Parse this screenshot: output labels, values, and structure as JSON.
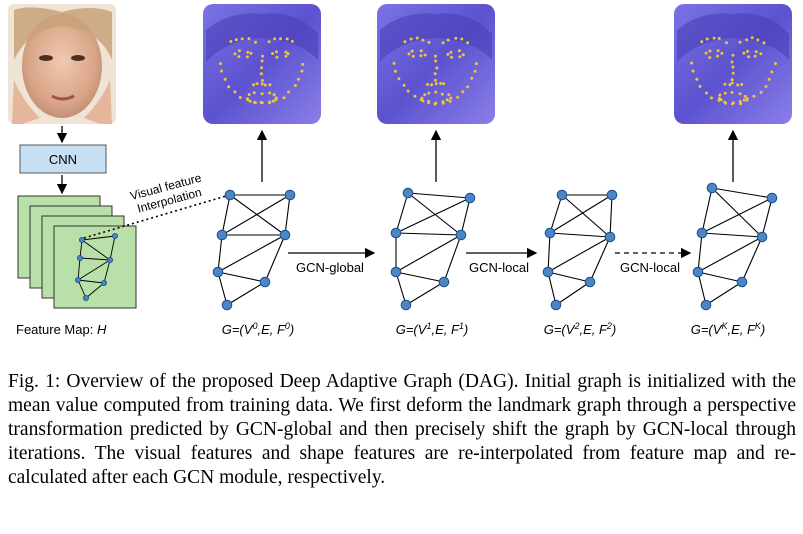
{
  "diagram": {
    "cnn_label": "CNN",
    "interp_label_line1": "Visual feature",
    "interp_label_line2": "Interpolation",
    "feature_map_label": "Feature Map: ",
    "feature_map_var": "H",
    "arrows": [
      {
        "label": "GCN-global",
        "style": "solid"
      },
      {
        "label": "GCN-local",
        "style": "solid"
      },
      {
        "label": "GCN-local",
        "style": "dashed"
      }
    ],
    "graphs": [
      {
        "head": "G=(V",
        "sup1": "0",
        "mid": ",E, F",
        "sup2": "0",
        "tail": ")"
      },
      {
        "head": "G=(V",
        "sup1": "1",
        "mid": ",E, F",
        "sup2": "1",
        "tail": ")"
      },
      {
        "head": "G=(V",
        "sup1": "2",
        "mid": ",E, F",
        "sup2": "2",
        "tail": ")"
      },
      {
        "head": "G=(V",
        "sup1": "K",
        "mid": ",E, F",
        "sup2": "K",
        "tail": ")"
      }
    ],
    "colors": {
      "node_fill": "#4a86c5",
      "node_stroke": "#1f4f86",
      "cnn_box": "#c7dff2",
      "feature_map": "#b9e0a8",
      "face_overlay": "#6a5fd8",
      "landmark": "#f0c53a"
    }
  },
  "caption": {
    "text": "Fig. 1: Overview of the proposed Deep Adaptive Graph (DAG). Initial graph is initialized with the mean value computed from training data. We first deform the landmark graph through a perspective transformation predicted by GCN-global and then precisely shift the graph by GCN-local through iterations. The visual features and shape features are re-interpolated from feature map and re-calculated after each GCN module, respectively."
  }
}
